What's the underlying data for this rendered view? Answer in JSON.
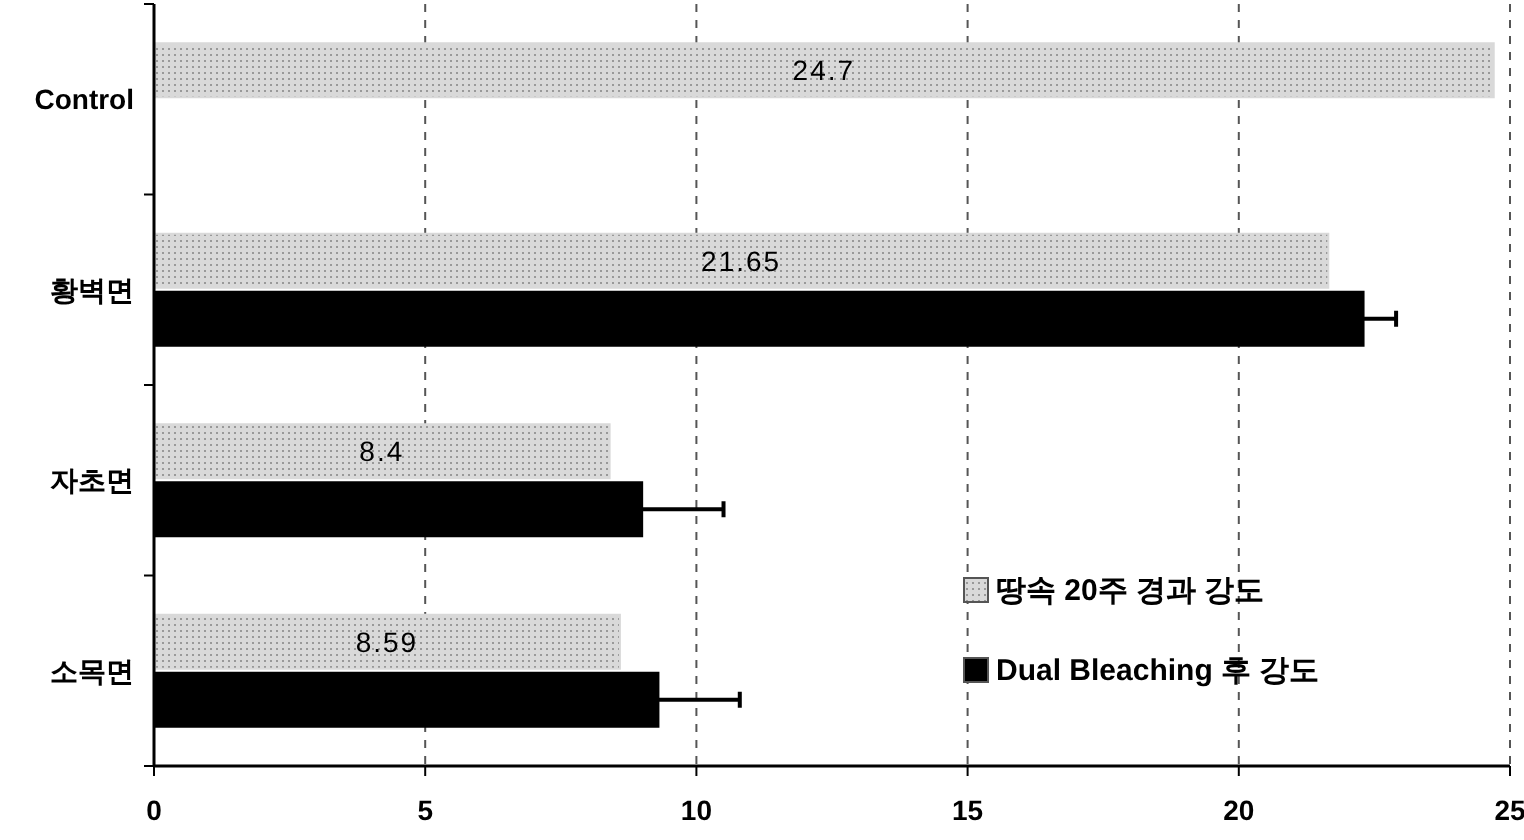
{
  "chart_data": {
    "type": "bar",
    "orientation": "horizontal",
    "categories": [
      "Control",
      "황벽면",
      "자초면",
      "소목면"
    ],
    "series": [
      {
        "name": "땅속 20주 경과 강도",
        "color": "#d9d9d9",
        "values": [
          24.7,
          21.65,
          8.4,
          8.59
        ],
        "value_labels": [
          "24.7",
          "21.65",
          "8.4",
          "8.59"
        ]
      },
      {
        "name": "Dual Bleaching 후 강도",
        "color": "#000000",
        "values": [
          null,
          22.3,
          9.0,
          9.3
        ],
        "errors": [
          null,
          0.6,
          1.5,
          1.5
        ]
      }
    ],
    "xlim": [
      0,
      25
    ],
    "xticks": [
      0,
      5,
      10,
      15,
      20,
      25
    ],
    "grid": "x",
    "legend": "bottom right"
  }
}
